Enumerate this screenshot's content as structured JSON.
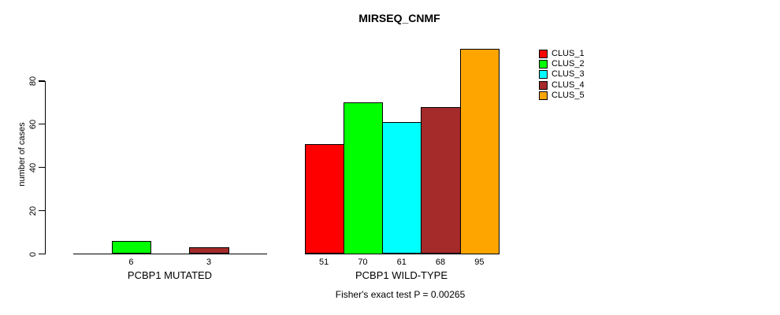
{
  "chart_data": {
    "type": "bar",
    "title": "MIRSEQ_CNMF",
    "ylabel": "number of cases",
    "xlabel": "",
    "ylim": [
      0,
      80
    ],
    "yticks": [
      0,
      20,
      40,
      60,
      80
    ],
    "grid": false,
    "legend_position": "right-outside",
    "categories": [
      "PCBP1 MUTATED",
      "PCBP1 WILD-TYPE"
    ],
    "groups": [
      {
        "label": "PCBP1 MUTATED",
        "values": [
          0,
          6,
          0,
          3,
          0
        ],
        "bar_labels": [
          "",
          "6",
          "",
          "3",
          ""
        ]
      },
      {
        "label": "PCBP1 WILD-TYPE",
        "values": [
          51,
          70,
          61,
          68,
          95
        ],
        "bar_labels": [
          "51",
          "70",
          "61",
          "68",
          "95"
        ]
      }
    ],
    "series": [
      {
        "name": "CLUS_1",
        "color": "#FF0000"
      },
      {
        "name": "CLUS_2",
        "color": "#00FF00"
      },
      {
        "name": "CLUS_3",
        "color": "#00FFFF"
      },
      {
        "name": "CLUS_4",
        "color": "#A52A2A"
      },
      {
        "name": "CLUS_5",
        "color": "#FFA500"
      }
    ],
    "annotation": "Fisher's exact test P = 0.00265"
  },
  "colors": {
    "axis": "#000000",
    "text": "#000000",
    "background": "#FFFFFF"
  }
}
